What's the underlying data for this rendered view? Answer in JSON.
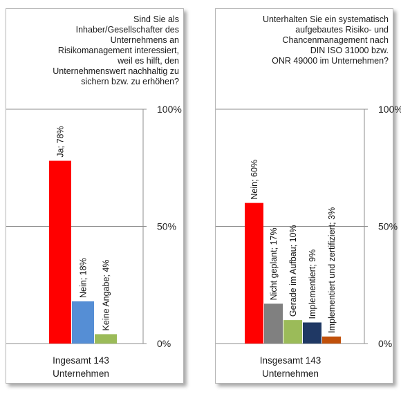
{
  "chart_data": [
    {
      "type": "bar",
      "title": "Sind Sie als\nInhaber/Gesellschafter des\nUnternehmens an\nRisikomanagement interessiert,\nweil es hilft, den\nUnternehmenswert nachhaltig zu\nsichern bzw.  zu erhöhen?",
      "categories": [
        "Ja",
        "Nein",
        "Keine Angabe"
      ],
      "values": [
        78,
        18,
        4
      ],
      "colors": [
        "#ff0000",
        "#558ed5",
        "#9bbb59"
      ],
      "data_labels": [
        "Ja; 78%",
        "Nein; 18%",
        "Keine Angabe; 4%"
      ],
      "ylim": [
        0,
        100
      ],
      "yticks": [
        "100%",
        "50%",
        "0%"
      ],
      "grid": true,
      "axis_side": "right",
      "footer": "Ingesamt 143\nUnternehmen"
    },
    {
      "type": "bar",
      "title": "Unterhalten Sie ein systematisch\naufgebautes Risiko- und\nChancenmanagement nach\nDIN  ISO  31000 bzw.\nONR 49000 im Unternehmen?",
      "categories": [
        "Nein",
        "Nicht geplant",
        "Gerade im Aufbau",
        "Implementiert",
        "Implementiert und zertifiziert"
      ],
      "values": [
        60,
        17,
        10,
        9,
        3
      ],
      "colors": [
        "#ff0000",
        "#808080",
        "#9bbb59",
        "#1f3864",
        "#c0500a"
      ],
      "data_labels": [
        "Nein; 60%",
        "Nicht geplant; 17%",
        "Gerade im Aufbau; 10%",
        "Implementiert; 9%",
        "Implementiert und zertifiziert; 3%"
      ],
      "ylim": [
        0,
        100
      ],
      "yticks": [
        "100%",
        "50%",
        "0%"
      ],
      "grid": true,
      "axis_side": "right",
      "footer": "Insgesamt 143\nUnternehmen"
    }
  ]
}
